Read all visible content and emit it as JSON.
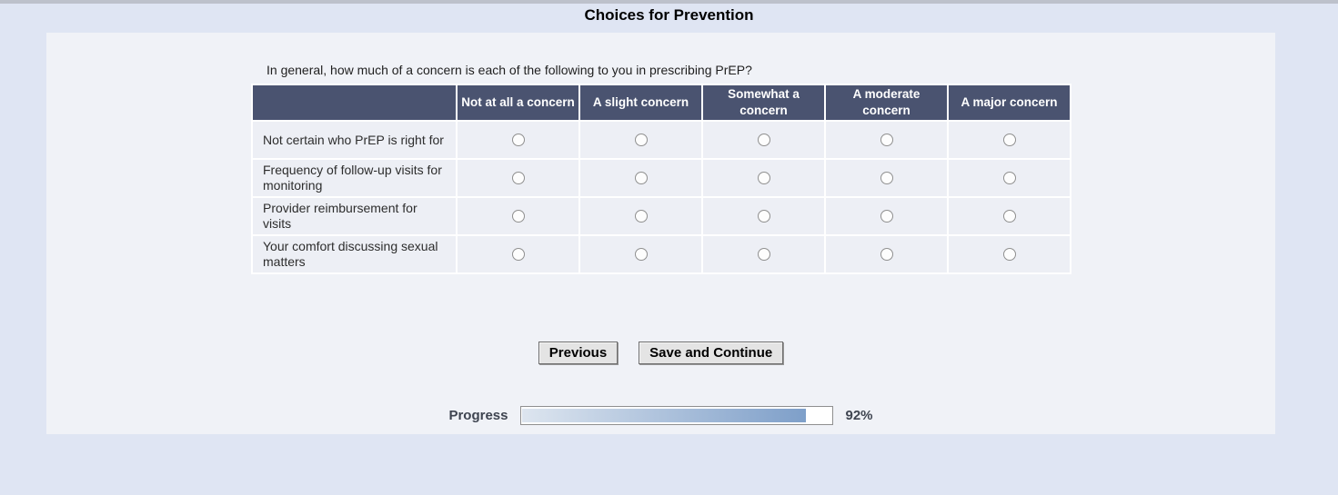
{
  "page": {
    "title": "Choices for Prevention"
  },
  "survey": {
    "question": "In general, how much of a concern is each of the following to you in prescribing PrEP?",
    "table": {
      "columns": [
        "Not at all a concern",
        "A slight concern",
        "Somewhat a concern",
        "A moderate concern",
        "A major concern"
      ],
      "rows": [
        {
          "label": "Not certain who PrEP is right for",
          "selected": null
        },
        {
          "label": "Frequency of follow-up visits for monitoring",
          "selected": null
        },
        {
          "label": "Provider reimbursement for visits",
          "selected": null
        },
        {
          "label": "Your comfort discussing sexual matters",
          "selected": null
        }
      ]
    }
  },
  "buttons": {
    "previous": "Previous",
    "save_continue": "Save and Continue"
  },
  "progress": {
    "label": "Progress",
    "value": "92%",
    "percent": 92
  },
  "colors": {
    "page_background": "#dfe5f3",
    "panel_background": "#f0f2f7",
    "table_header_background": "#4a5370",
    "table_header_text": "#ffffff",
    "table_row_background": "#edeff5",
    "progress_fill_start": "#dde5ef",
    "progress_fill_end": "#7e9fc9"
  }
}
